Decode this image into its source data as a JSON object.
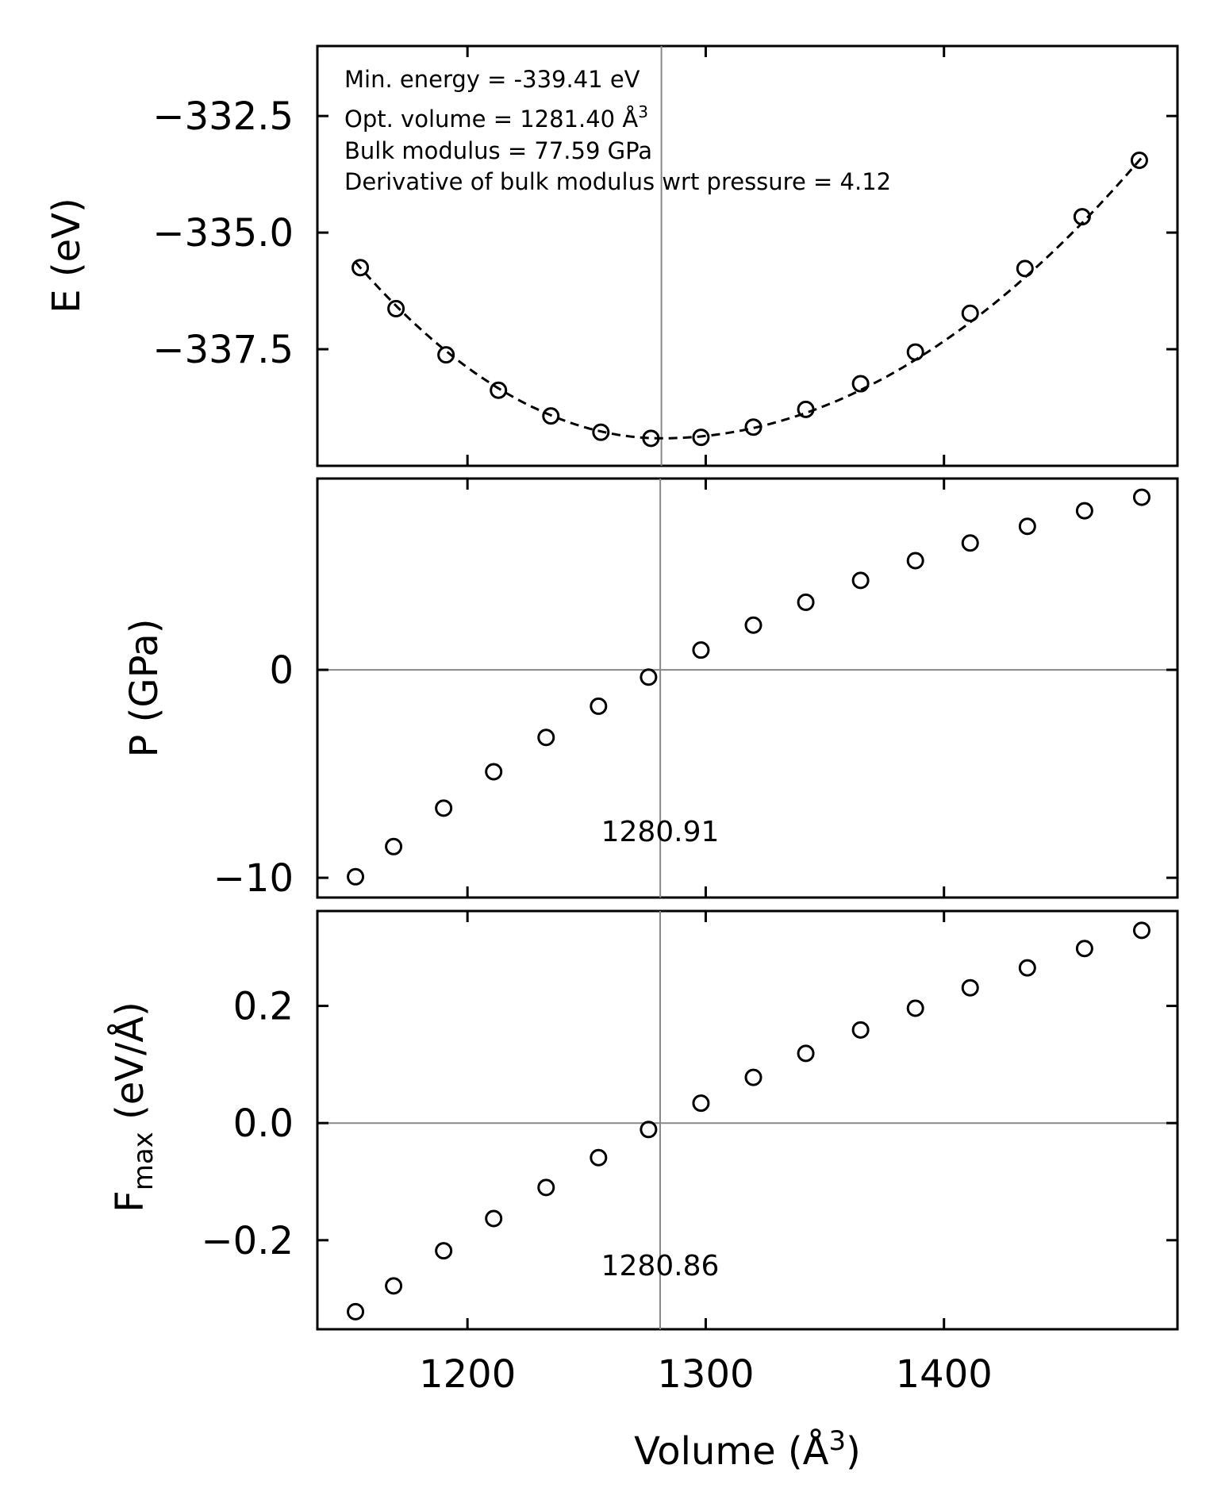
{
  "chart_data": [
    {
      "type": "scatter",
      "panel": "energy",
      "ylabel": "E (eV)",
      "xlim": [
        1137,
        1498
      ],
      "ylim": [
        -340.0,
        -331.0
      ],
      "yticks": [
        -332.5,
        -335.0,
        -337.5
      ],
      "ytick_labels": [
        "−332.5",
        "−335.0",
        "−337.5"
      ],
      "x": [
        1155,
        1170,
        1191,
        1213,
        1235,
        1256,
        1277,
        1298,
        1320,
        1342,
        1365,
        1388,
        1411,
        1434,
        1458,
        1482
      ],
      "y": [
        -335.75,
        -336.63,
        -337.62,
        -338.38,
        -338.93,
        -339.28,
        -339.41,
        -339.39,
        -339.17,
        -338.79,
        -338.24,
        -337.56,
        -336.73,
        -335.77,
        -334.66,
        -333.45
      ],
      "fit": {
        "style": "dashed",
        "v0": 1281.4,
        "e0": -339.41,
        "x_range": [
          1153,
          1484
        ]
      },
      "vline": 1281.4,
      "annotations": [
        "Min. energy = -339.41 eV",
        "Opt. volume = 1281.40 Å",
        "Bulk modulus = 77.59 GPa",
        "Derivative of bulk modulus wrt pressure = 4.12"
      ],
      "annotation_superscript": "3"
    },
    {
      "type": "scatter",
      "panel": "pressure",
      "ylabel": "P (GPa)",
      "xlim": [
        1137,
        1498
      ],
      "ylim": [
        -10.95,
        9.2
      ],
      "yticks": [
        0,
        -10
      ],
      "ytick_labels": [
        "0",
        "−10"
      ],
      "x": [
        1153,
        1169,
        1190,
        1211,
        1233,
        1255,
        1276,
        1298,
        1320,
        1342,
        1365,
        1388,
        1411,
        1435,
        1459,
        1483
      ],
      "y": [
        -9.95,
        -8.5,
        -6.65,
        -4.9,
        -3.25,
        -1.75,
        -0.35,
        0.95,
        2.15,
        3.25,
        4.3,
        5.25,
        6.1,
        6.9,
        7.65,
        8.3
      ],
      "hline": 0,
      "vline": 1280.91,
      "vline_label": "1280.91"
    },
    {
      "type": "scatter",
      "panel": "force",
      "ylabel_main": "F",
      "ylabel_sub": "max",
      "ylabel_tail": " (eV/Å)",
      "xlabel": "Volume (Å",
      "xlabel_sup": "3",
      "xlabel_tail": ")",
      "xlim": [
        1137,
        1498
      ],
      "ylim": [
        -0.352,
        0.362
      ],
      "xticks": [
        1200,
        1300,
        1400
      ],
      "xtick_labels": [
        "1200",
        "1300",
        "1400"
      ],
      "yticks": [
        0.2,
        0.0,
        -0.2
      ],
      "ytick_labels": [
        "0.2",
        "0.0",
        "−0.2"
      ],
      "x": [
        1153,
        1169,
        1190,
        1211,
        1233,
        1255,
        1276,
        1298,
        1320,
        1342,
        1365,
        1388,
        1411,
        1435,
        1459,
        1483
      ],
      "y": [
        -0.322,
        -0.278,
        -0.218,
        -0.163,
        -0.11,
        -0.059,
        -0.011,
        0.034,
        0.078,
        0.119,
        0.159,
        0.196,
        0.231,
        0.265,
        0.298,
        0.329
      ],
      "hline": 0,
      "vline": 1280.86,
      "vline_label": "1280.86"
    }
  ]
}
